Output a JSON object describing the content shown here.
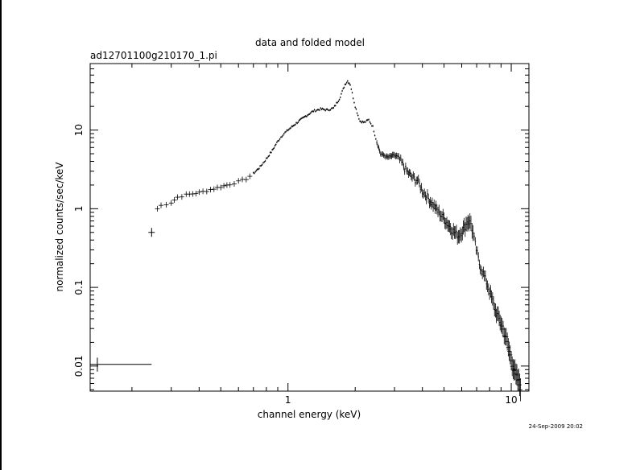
{
  "colors": {
    "background": "#ffffff",
    "foreground": "#000000"
  },
  "chart_data": {
    "type": "scatter",
    "title": "data and folded model",
    "subtitle": "ad12701100g210170_1.pi",
    "xlabel": "channel energy (keV)",
    "ylabel": "normalized counts/sec/keV",
    "timestamp": "24-Sep-2009 20:02",
    "x_scale": "log",
    "y_scale": "log",
    "xlim": [
      0.13,
      12
    ],
    "ylim": [
      0.0048,
      70
    ],
    "x_tick_labels": [
      {
        "value": 1,
        "label": "1"
      },
      {
        "value": 10,
        "label": "10"
      }
    ],
    "y_tick_labels": [
      {
        "value": 0.01,
        "label": "0.01"
      },
      {
        "value": 0.1,
        "label": "0.1"
      },
      {
        "value": 1,
        "label": "1"
      },
      {
        "value": 10,
        "label": "10"
      }
    ],
    "grid": false,
    "legend": "none",
    "error_bar_points": [
      {
        "x": 0.14,
        "y": 0.0105,
        "xerr": [
          0.13,
          0.245
        ],
        "yerr": [
          0.0085,
          0.0128
        ]
      },
      {
        "x": 0.245,
        "y": 0.5,
        "xerr": [
          0.237,
          0.253
        ],
        "yerr": [
          0.44,
          0.57
        ]
      }
    ],
    "spectrum": [
      {
        "x": 0.26,
        "y": 1.0
      },
      {
        "x": 0.27,
        "y": 1.1
      },
      {
        "x": 0.285,
        "y": 1.15
      },
      {
        "x": 0.3,
        "y": 1.2
      },
      {
        "x": 0.32,
        "y": 1.4
      },
      {
        "x": 0.35,
        "y": 1.5
      },
      {
        "x": 0.4,
        "y": 1.6
      },
      {
        "x": 0.45,
        "y": 1.75
      },
      {
        "x": 0.5,
        "y": 1.9
      },
      {
        "x": 0.55,
        "y": 2.05
      },
      {
        "x": 0.6,
        "y": 2.2
      },
      {
        "x": 0.65,
        "y": 2.4
      },
      {
        "x": 0.7,
        "y": 2.8
      },
      {
        "x": 0.75,
        "y": 3.4
      },
      {
        "x": 0.8,
        "y": 4.3
      },
      {
        "x": 0.85,
        "y": 5.5
      },
      {
        "x": 0.9,
        "y": 7.2
      },
      {
        "x": 0.95,
        "y": 8.8
      },
      {
        "x": 1.0,
        "y": 10.0
      },
      {
        "x": 1.1,
        "y": 12.5
      },
      {
        "x": 1.2,
        "y": 15.0
      },
      {
        "x": 1.3,
        "y": 17.5
      },
      {
        "x": 1.4,
        "y": 18.5
      },
      {
        "x": 1.5,
        "y": 18.0
      },
      {
        "x": 1.6,
        "y": 19.0
      },
      {
        "x": 1.7,
        "y": 25.0
      },
      {
        "x": 1.8,
        "y": 38.0
      },
      {
        "x": 1.85,
        "y": 42.0
      },
      {
        "x": 1.9,
        "y": 38.0
      },
      {
        "x": 2.0,
        "y": 20.0
      },
      {
        "x": 2.1,
        "y": 13.0
      },
      {
        "x": 2.2,
        "y": 12.5
      },
      {
        "x": 2.3,
        "y": 13.5
      },
      {
        "x": 2.4,
        "y": 11.0
      },
      {
        "x": 2.5,
        "y": 7.0
      },
      {
        "x": 2.6,
        "y": 5.0
      },
      {
        "x": 2.8,
        "y": 4.5
      },
      {
        "x": 3.0,
        "y": 4.8
      },
      {
        "x": 3.2,
        "y": 4.0
      },
      {
        "x": 3.4,
        "y": 3.0
      },
      {
        "x": 3.6,
        "y": 2.5
      },
      {
        "x": 3.8,
        "y": 2.3
      },
      {
        "x": 4.0,
        "y": 1.7
      },
      {
        "x": 4.3,
        "y": 1.3
      },
      {
        "x": 4.6,
        "y": 1.0
      },
      {
        "x": 5.0,
        "y": 0.75
      },
      {
        "x": 5.4,
        "y": 0.55
      },
      {
        "x": 5.8,
        "y": 0.45
      },
      {
        "x": 6.1,
        "y": 0.55
      },
      {
        "x": 6.4,
        "y": 0.7
      },
      {
        "x": 6.6,
        "y": 0.65
      },
      {
        "x": 6.9,
        "y": 0.35
      },
      {
        "x": 7.2,
        "y": 0.2
      },
      {
        "x": 7.5,
        "y": 0.15
      },
      {
        "x": 8.0,
        "y": 0.09
      },
      {
        "x": 8.5,
        "y": 0.05
      },
      {
        "x": 9.0,
        "y": 0.035
      },
      {
        "x": 9.5,
        "y": 0.022
      },
      {
        "x": 10.0,
        "y": 0.012
      },
      {
        "x": 10.5,
        "y": 0.0075
      },
      {
        "x": 11.0,
        "y": 0.0055
      }
    ]
  }
}
